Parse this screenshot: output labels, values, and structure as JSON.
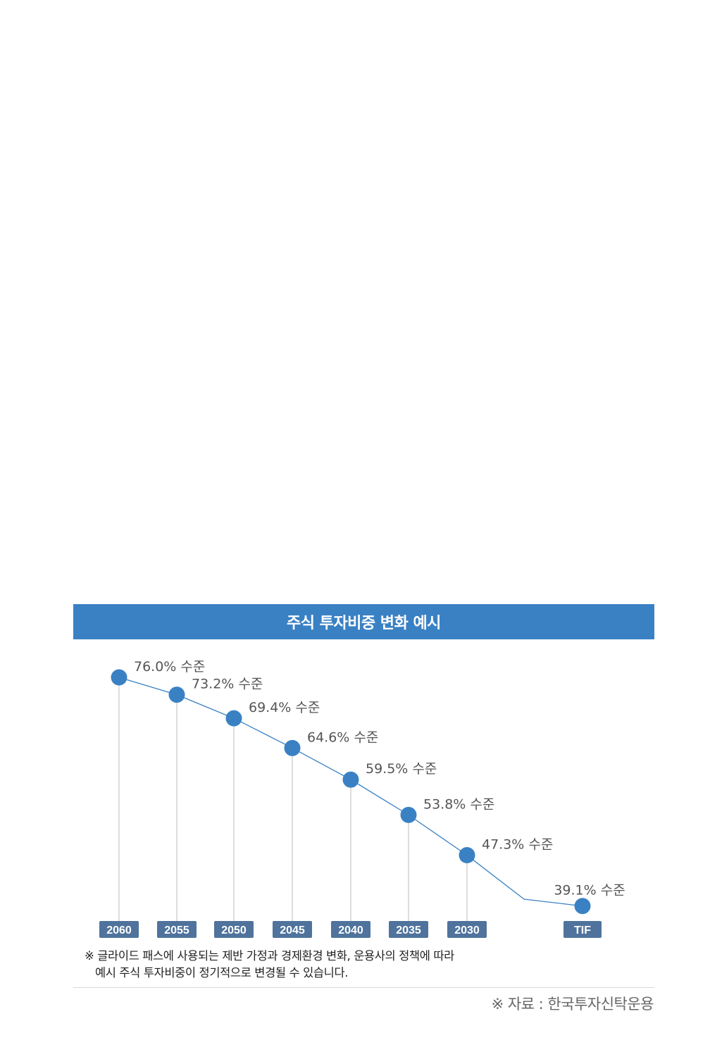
{
  "header": {
    "title": "주식 투자비중 변화 예시"
  },
  "chart_data": {
    "type": "line",
    "title": "주식 투자비중 변화 예시",
    "categories": [
      "2060",
      "2055",
      "2050",
      "2045",
      "2040",
      "2035",
      "2030",
      "TIF"
    ],
    "values": [
      76.0,
      73.2,
      69.4,
      64.6,
      59.5,
      53.8,
      47.3,
      39.1
    ],
    "data_labels": [
      "76.0% 수준",
      "73.2% 수준",
      "69.4% 수준",
      "64.6% 수준",
      "59.5% 수준",
      "53.8% 수준",
      "47.3% 수준",
      "39.1% 수준"
    ],
    "xlabel": "",
    "ylabel": "",
    "grid": false,
    "colors": {
      "line": "#3a81c4",
      "marker": "#3a81c4",
      "tick_badge": "#4f739c",
      "drop_line": "#c8c8c8"
    }
  },
  "footnote": {
    "line1": "※ 글라이드 패스에 사용되는 제반 가정과 경제환경 변화, 운용사의 정책에 따라",
    "line2": "예시 주식 투자비중이 정기적으로 변경될 수 있습니다."
  },
  "source": "※ 자료 : 한국투자신탁운용"
}
